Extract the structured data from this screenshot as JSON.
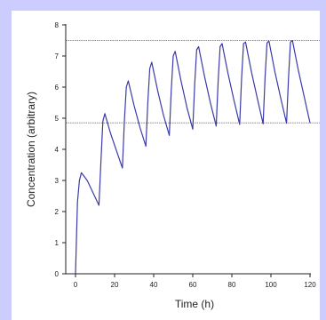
{
  "colors": {
    "background": "#ccccff",
    "panel": "#ffffff",
    "line": "#3a3aaa",
    "reference": "#888888",
    "axis": "#222222"
  },
  "chart_data": {
    "type": "line",
    "title": "",
    "xlabel": "Time (h)",
    "ylabel": "Concentration (arbitrary)",
    "xlim": [
      -5,
      125
    ],
    "ylim": [
      0,
      8
    ],
    "xticks": [
      0,
      20,
      40,
      60,
      80,
      100,
      120
    ],
    "yticks": [
      0,
      1,
      2,
      3,
      4,
      5,
      6,
      7,
      8
    ],
    "grid": false,
    "legend": "none",
    "reference_lines": [
      {
        "y": 7.5,
        "style": "dotted"
      },
      {
        "y": 4.85,
        "style": "dotted"
      }
    ],
    "series": [
      {
        "x": [
          0,
          1,
          2,
          3,
          6,
          9,
          12,
          13,
          14,
          15,
          18,
          21,
          24,
          25,
          26,
          27,
          30,
          33,
          36,
          37,
          38,
          39,
          42,
          45,
          48,
          49,
          50,
          51,
          54,
          57,
          60,
          61,
          62,
          63,
          66,
          69,
          72,
          73,
          74,
          75,
          78,
          81,
          84,
          85,
          86,
          87,
          90,
          93,
          96,
          97,
          98,
          99,
          102,
          105,
          108,
          109,
          110,
          111,
          114,
          117,
          120
        ],
        "y": [
          0,
          2.3,
          3.0,
          3.25,
          3.0,
          2.6,
          2.2,
          3.6,
          4.9,
          5.15,
          4.5,
          3.95,
          3.4,
          4.9,
          6.0,
          6.2,
          5.4,
          4.7,
          4.1,
          5.5,
          6.6,
          6.8,
          5.9,
          5.1,
          4.45,
          5.9,
          7.0,
          7.15,
          6.2,
          5.35,
          4.65,
          6.1,
          7.2,
          7.3,
          6.35,
          5.5,
          4.75,
          6.2,
          7.3,
          7.4,
          6.45,
          5.6,
          4.8,
          6.3,
          7.4,
          7.45,
          6.5,
          5.65,
          4.82,
          6.3,
          7.42,
          7.48,
          6.5,
          5.65,
          4.84,
          6.3,
          7.45,
          7.5,
          6.55,
          5.7,
          4.85
        ]
      }
    ]
  }
}
